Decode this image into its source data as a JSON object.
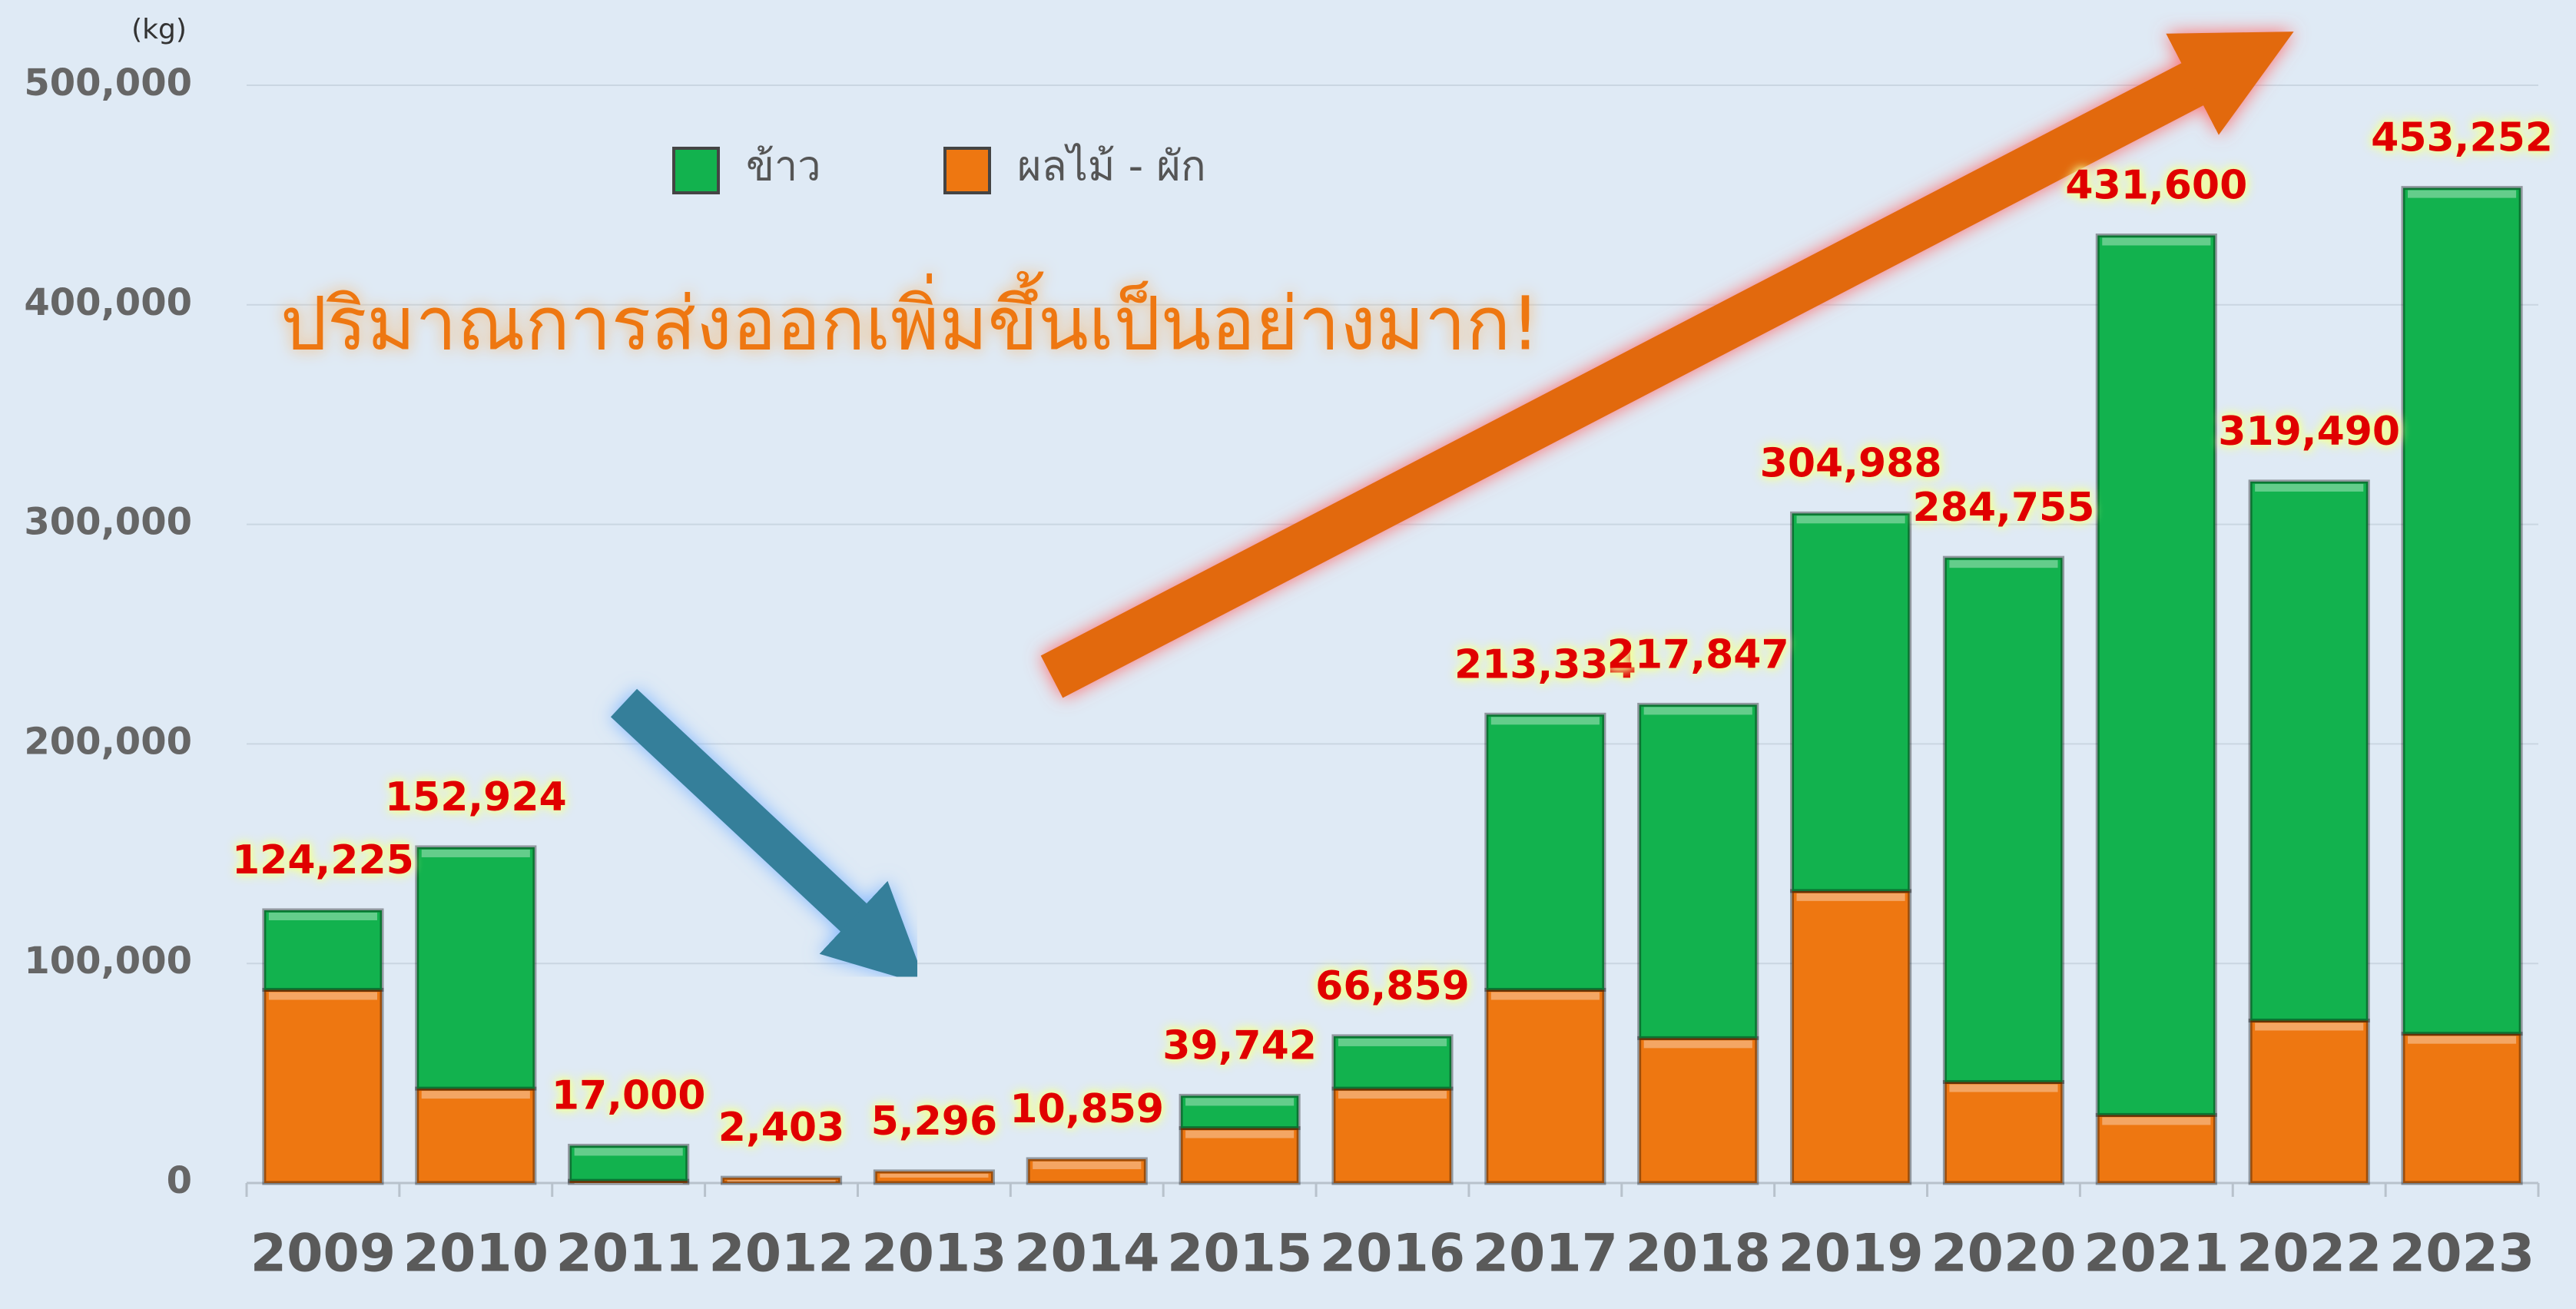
{
  "chart_data": {
    "type": "stacked_bar",
    "y_label": "(kg)",
    "annotation": "ปริมาณการส่งออกเพิ่มขึ้นเป็นอย่างมาก!",
    "categories": [
      "2009",
      "2010",
      "2011",
      "2012",
      "2013",
      "2014",
      "2015",
      "2016",
      "2017",
      "2018",
      "2019",
      "2020",
      "2021",
      "2022",
      "2023"
    ],
    "series": [
      {
        "name": "ผลไม้ - ผัก",
        "color": "#ee7711",
        "values": [
          88000,
          43000,
          1000,
          2403,
          5296,
          10859,
          25000,
          43000,
          88000,
          66000,
          133000,
          46000,
          31000,
          74000,
          68000
        ]
      },
      {
        "name": "ข้าว",
        "color": "#12b24e",
        "values": [
          36225,
          109924,
          16000,
          0,
          0,
          0,
          14742,
          23859,
          125334,
          151847,
          171988,
          238755,
          400600,
          245490,
          385252
        ]
      }
    ],
    "total_labels": [
      "124,225",
      "152,924",
      "17,000",
      "2,403",
      "5,296",
      "10,859",
      "39,742",
      "66,859",
      "213,334",
      "217,847",
      "304,988",
      "284,755",
      "431,600",
      "319,490",
      "453,252"
    ],
    "ylim": [
      0,
      500000
    ],
    "yticks": [
      0,
      {
        "value": 100000,
        "label": "100,000"
      },
      {
        "value": 200000,
        "label": "200,000"
      },
      {
        "value": 300000,
        "label": "300,000"
      },
      {
        "value": 400000,
        "label": "400,000"
      },
      {
        "value": 500000,
        "label": "500,000"
      }
    ],
    "grid": true,
    "legend_position": "top"
  }
}
